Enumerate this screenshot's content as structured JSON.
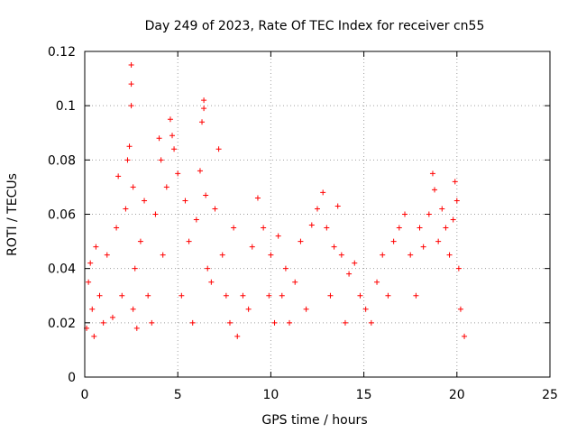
{
  "chart_data": {
    "type": "scatter",
    "title": "Day 249 of 2023, Rate Of TEC Index for receiver cn55",
    "xlabel": "GPS time / hours",
    "ylabel": "ROTI / TECUs",
    "xlim": [
      0,
      25
    ],
    "ylim": [
      0,
      0.12
    ],
    "xticks": [
      0,
      5,
      10,
      15,
      20,
      25
    ],
    "xtick_labels": [
      "0",
      "5",
      "10",
      "15",
      "20",
      "25"
    ],
    "yticks": [
      0,
      0.02,
      0.04,
      0.06,
      0.08,
      0.1,
      0.12
    ],
    "ytick_labels": [
      "0",
      "0.02",
      "0.04",
      "0.06",
      "0.08",
      "0.1",
      "0.12"
    ],
    "grid": true,
    "legend": "none",
    "marker": "plus",
    "color": "#ff0000",
    "series": [
      {
        "x": [
          0.1,
          0.2,
          0.3,
          0.4,
          0.5,
          0.6,
          0.8,
          1.0,
          1.2,
          1.5,
          1.7,
          1.8,
          2.0,
          2.2,
          2.3,
          2.4,
          2.5,
          2.5,
          2.5,
          2.6,
          2.6,
          2.7,
          2.8,
          3.0,
          3.2,
          3.4,
          3.6,
          3.8,
          4.0,
          4.1,
          4.2,
          4.4,
          4.6,
          4.7,
          4.8,
          5.0,
          5.2,
          5.4,
          5.6,
          5.8,
          6.0,
          6.2,
          6.3,
          6.4,
          6.4,
          6.5,
          6.6,
          6.8,
          7.0,
          7.2,
          7.4,
          7.6,
          7.8,
          8.0,
          8.2,
          8.5,
          8.8,
          9.0,
          9.3,
          9.6,
          9.9,
          10.0,
          10.2,
          10.4,
          10.6,
          10.8,
          11.0,
          11.3,
          11.6,
          11.9,
          12.2,
          12.5,
          12.8,
          13.0,
          13.2,
          13.4,
          13.6,
          13.8,
          14.0,
          14.2,
          14.5,
          14.8,
          15.1,
          15.4,
          15.7,
          16.0,
          16.3,
          16.6,
          16.9,
          17.2,
          17.5,
          17.8,
          18.0,
          18.2,
          18.5,
          18.7,
          18.8,
          19.0,
          19.2,
          19.4,
          19.6,
          19.8,
          19.9,
          20.0,
          20.1,
          20.2,
          20.4
        ],
        "y": [
          0.018,
          0.035,
          0.042,
          0.025,
          0.015,
          0.048,
          0.03,
          0.02,
          0.045,
          0.022,
          0.055,
          0.074,
          0.03,
          0.062,
          0.08,
          0.085,
          0.1,
          0.108,
          0.115,
          0.07,
          0.025,
          0.04,
          0.018,
          0.05,
          0.065,
          0.03,
          0.02,
          0.06,
          0.088,
          0.08,
          0.045,
          0.07,
          0.095,
          0.089,
          0.084,
          0.075,
          0.03,
          0.065,
          0.05,
          0.02,
          0.058,
          0.076,
          0.094,
          0.102,
          0.099,
          0.067,
          0.04,
          0.035,
          0.062,
          0.084,
          0.045,
          0.03,
          0.02,
          0.055,
          0.015,
          0.03,
          0.025,
          0.048,
          0.066,
          0.055,
          0.03,
          0.045,
          0.02,
          0.052,
          0.03,
          0.04,
          0.02,
          0.035,
          0.05,
          0.025,
          0.056,
          0.062,
          0.068,
          0.055,
          0.03,
          0.048,
          0.063,
          0.045,
          0.02,
          0.038,
          0.042,
          0.03,
          0.025,
          0.02,
          0.035,
          0.045,
          0.03,
          0.05,
          0.055,
          0.06,
          0.045,
          0.03,
          0.055,
          0.048,
          0.06,
          0.075,
          0.069,
          0.05,
          0.062,
          0.055,
          0.045,
          0.058,
          0.072,
          0.065,
          0.04,
          0.025,
          0.015
        ]
      }
    ]
  }
}
